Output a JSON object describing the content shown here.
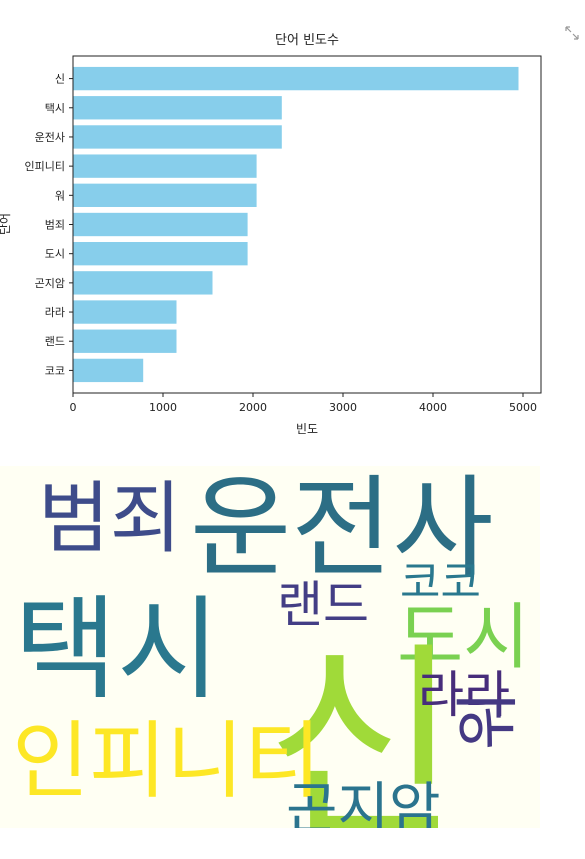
{
  "chart_data": {
    "type": "bar",
    "orientation": "horizontal",
    "title": "단어 빈도수",
    "xlabel": "빈도",
    "ylabel": "단어",
    "categories": [
      "신",
      "택시",
      "운전사",
      "인피니티",
      "워",
      "범죄",
      "도시",
      "곤지암",
      "라라",
      "랜드",
      "코코"
    ],
    "values": [
      4950,
      2320,
      2320,
      2040,
      2040,
      1940,
      1940,
      1550,
      1150,
      1150,
      780
    ],
    "xlim": [
      0,
      5200
    ],
    "xticks": [
      0,
      1000,
      2000,
      3000,
      4000,
      5000
    ],
    "grid": false,
    "bar_color": "#87ceeb"
  },
  "wordcloud": {
    "background": "#fffff3",
    "words": [
      {
        "text": "운전사",
        "color": "#2c6e85"
      },
      {
        "text": "범죄",
        "color": "#3e4c8a"
      },
      {
        "text": "택시",
        "color": "#2a788e"
      },
      {
        "text": "랜드",
        "color": "#433e85"
      },
      {
        "text": "코코",
        "color": "#2a788e"
      },
      {
        "text": "도시",
        "color": "#7ad151"
      },
      {
        "text": "신",
        "color": "#a0da39"
      },
      {
        "text": "라라",
        "color": "#472d7b"
      },
      {
        "text": "워",
        "color": "#443983"
      },
      {
        "text": "인피니티",
        "color": "#fde725"
      },
      {
        "text": "곤지암",
        "color": "#2b748e"
      }
    ]
  }
}
